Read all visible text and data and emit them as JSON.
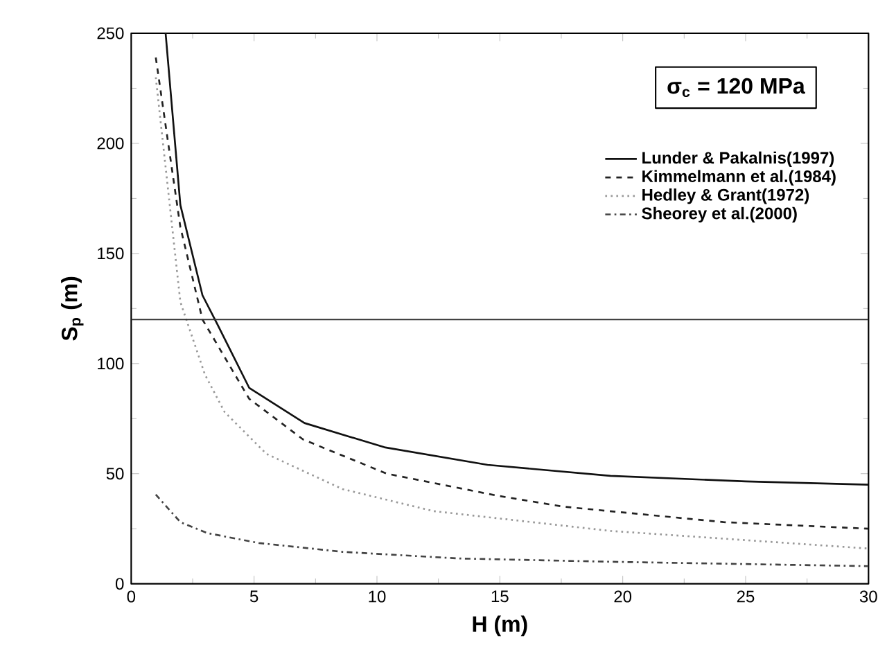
{
  "chart_data": {
    "type": "line",
    "xlabel": "H (m)",
    "ylabel": "S$_{p}$ (m)",
    "xlim": [
      0,
      30
    ],
    "ylim": [
      0,
      250
    ],
    "xticks": [
      0,
      5,
      10,
      15,
      20,
      25,
      30
    ],
    "yticks": [
      0,
      50,
      100,
      150,
      200,
      250
    ],
    "legend": "top right",
    "grid": false,
    "marker": "none",
    "annotations": [
      "σ$_{c}$ = 120 MPa"
    ],
    "ref_lines": [
      {
        "axis": "y",
        "value": 120,
        "color": "#333333",
        "line_style": "solid"
      }
    ],
    "series": [
      {
        "name": "Lunder & Pakalnis(1997)",
        "color": "#111111",
        "line_style": "solid",
        "x": [
          1.4,
          2,
          2.9,
          3.5,
          4.8,
          7.05,
          10.3,
          14.5,
          19.5,
          25,
          30
        ],
        "values": [
          250,
          172,
          131,
          118,
          89,
          73,
          62,
          54,
          49,
          46.5,
          45
        ]
      },
      {
        "name": "Kimmelmann et al.(1984)",
        "color": "#222222",
        "line_style": "dashed",
        "x": [
          1,
          2,
          2.9,
          4.8,
          7,
          10.4,
          14.9,
          17.6,
          24.1,
          30
        ],
        "values": [
          239,
          162,
          120,
          84,
          65.5,
          50,
          40,
          35,
          28,
          25
        ]
      },
      {
        "name": "Hedley & Grant(1972)",
        "color": "#999999",
        "line_style": "dotted",
        "x": [
          1,
          2,
          3,
          3.8,
          5.5,
          8.6,
          12.3,
          19.5,
          30
        ],
        "values": [
          230,
          128,
          95,
          78,
          59,
          43,
          33,
          24,
          16
        ]
      },
      {
        "name": "Sheorey et al.(2000)",
        "color": "#444444",
        "line_style": "dashdot",
        "x": [
          1,
          2,
          3.1,
          5.2,
          8.6,
          13.3,
          19.5,
          30
        ],
        "values": [
          40.5,
          28,
          23,
          18.5,
          14.5,
          11.5,
          10,
          8
        ]
      }
    ]
  }
}
